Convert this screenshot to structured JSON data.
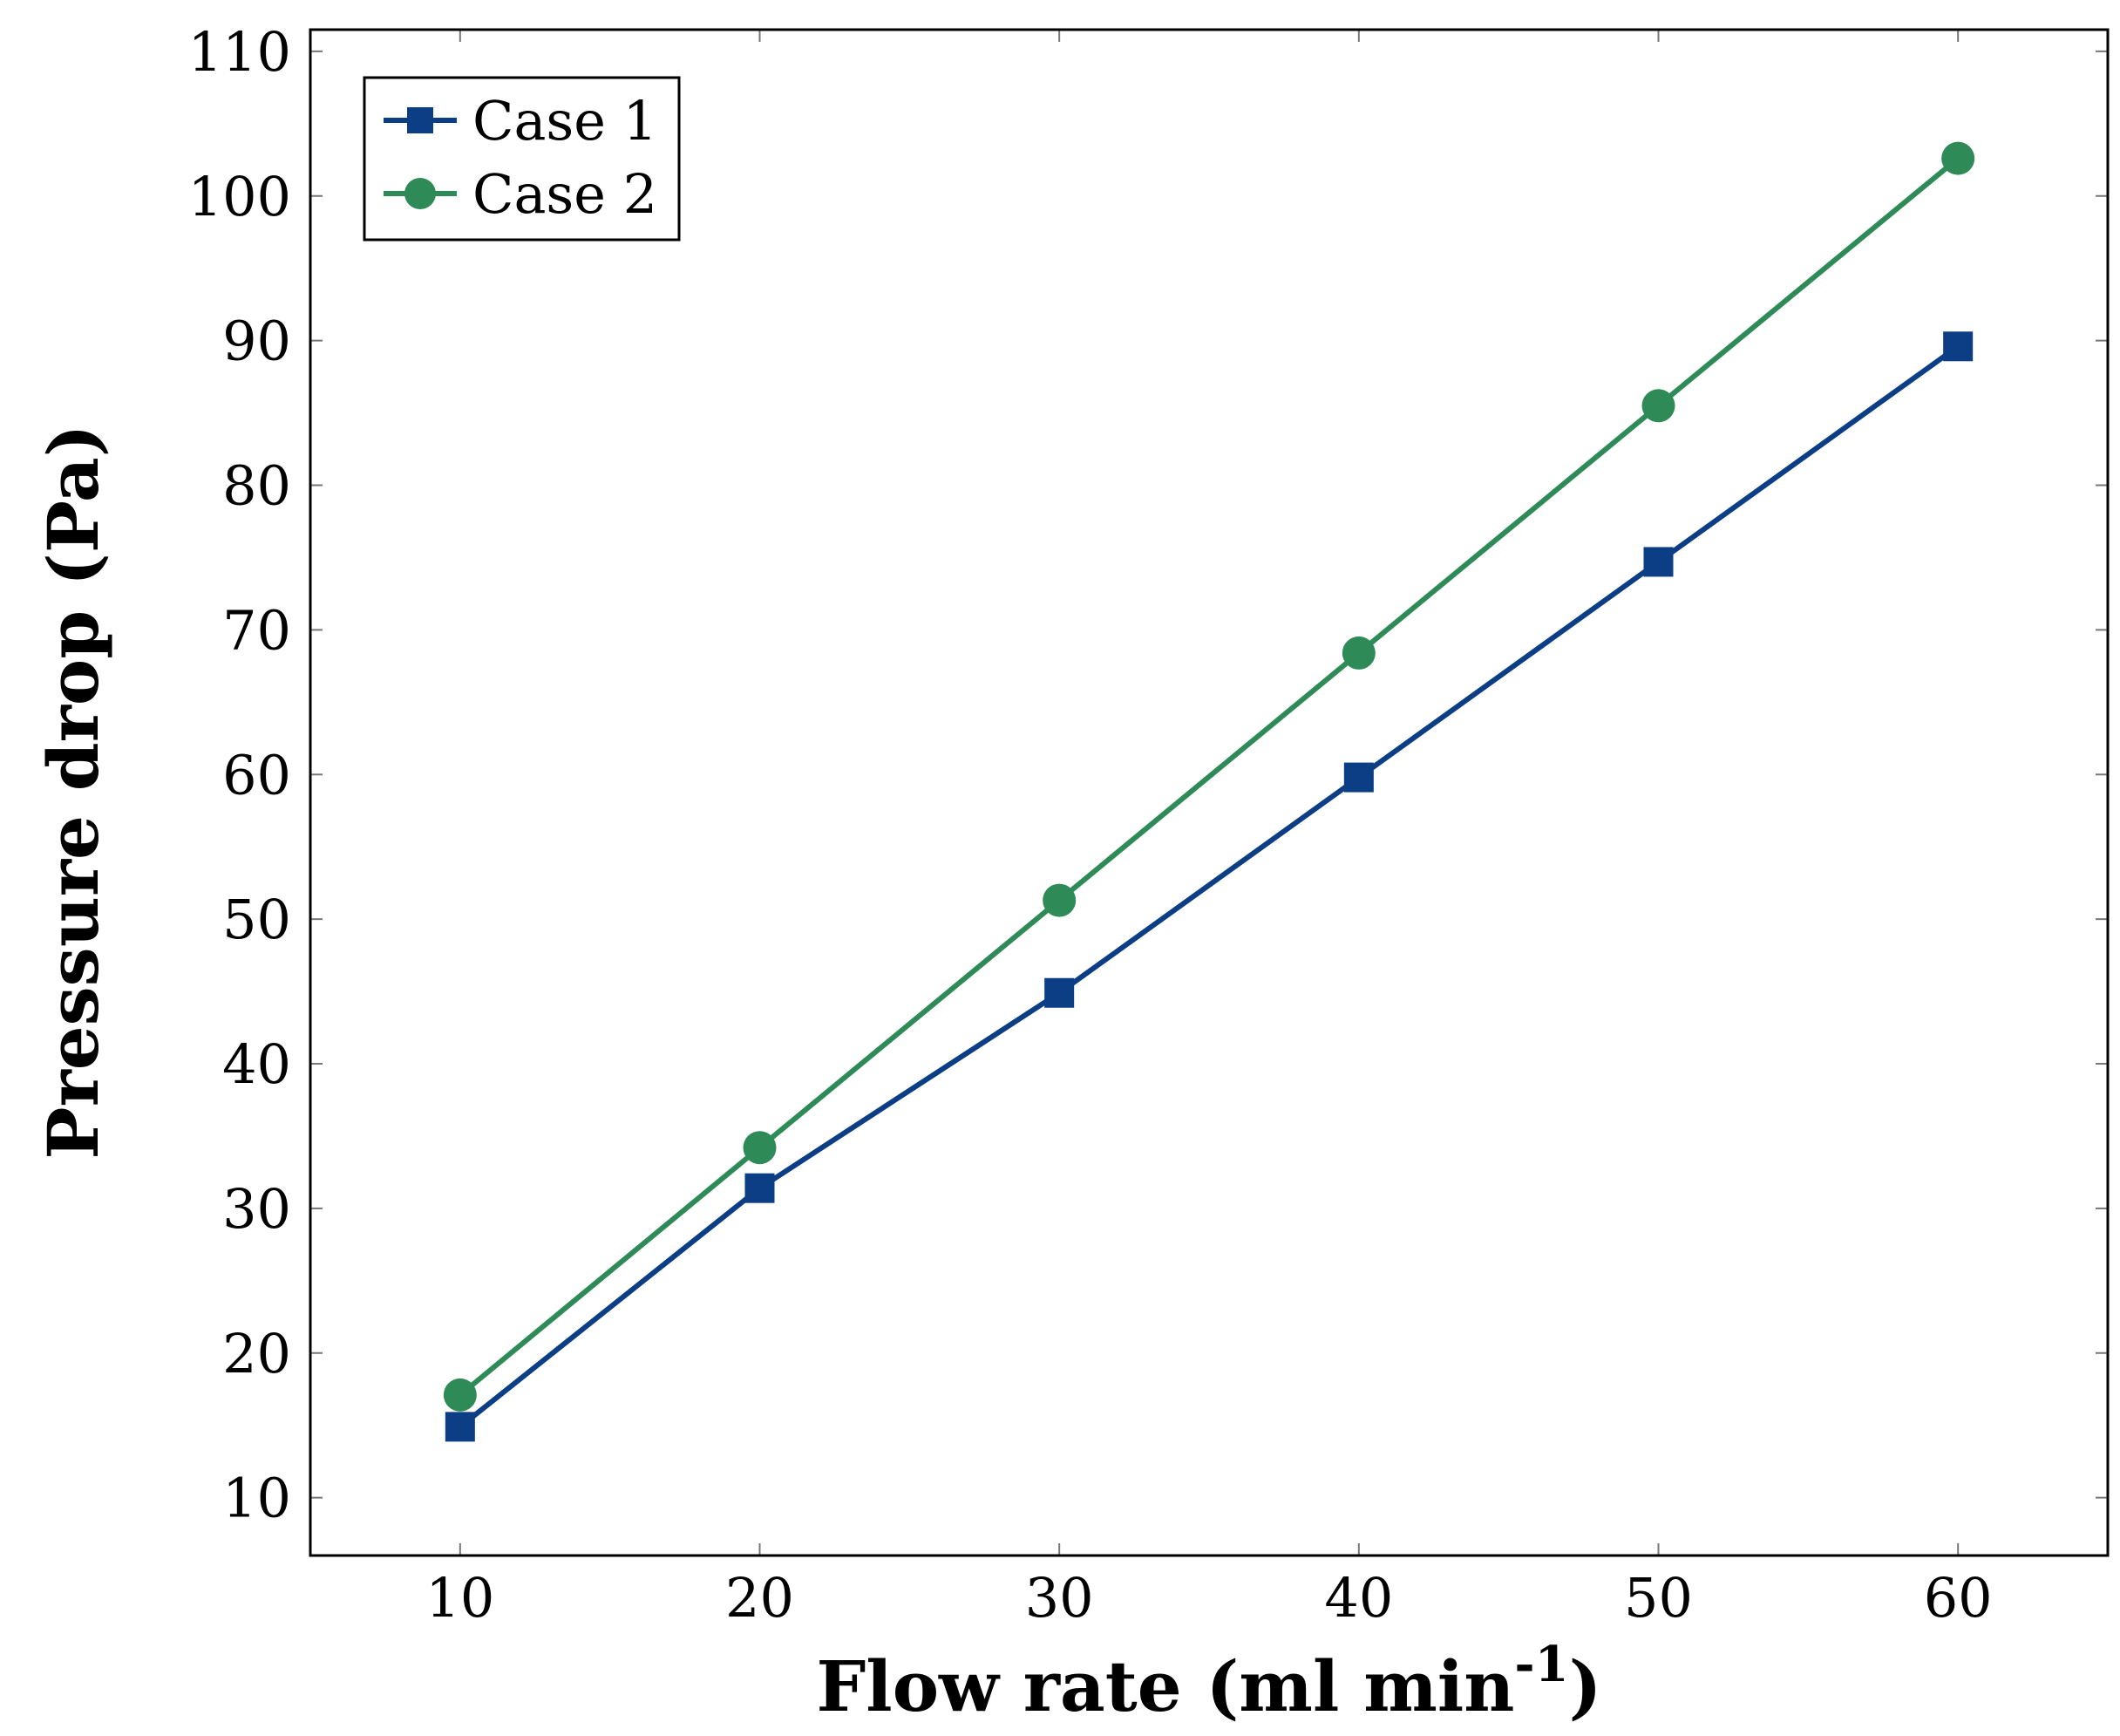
{
  "chart_data": {
    "type": "line",
    "title": "",
    "xlabel": "Flow rate (ml min",
    "xlabel_superscript": "-1",
    "xlabel_close": ")",
    "ylabel": "Pressure drop (Pa)",
    "xlim": [
      5,
      65
    ],
    "ylim": [
      6,
      111.5
    ],
    "x_ticks": [
      10,
      20,
      30,
      40,
      50,
      60
    ],
    "y_ticks": [
      10,
      20,
      30,
      40,
      50,
      60,
      70,
      80,
      90,
      100,
      110
    ],
    "x": [
      10,
      20,
      30,
      40,
      50,
      60
    ],
    "series": [
      {
        "name": "Case 1",
        "marker": "square",
        "color": "#0b3e85",
        "values": [
          14.9,
          31.4,
          44.9,
          59.8,
          74.7,
          89.6
        ]
      },
      {
        "name": "Case 2",
        "marker": "circle",
        "color": "#2e8b57",
        "values": [
          17.1,
          34.2,
          51.3,
          68.4,
          85.5,
          102.6
        ]
      }
    ],
    "legend_position": "top-left",
    "grid": false
  }
}
